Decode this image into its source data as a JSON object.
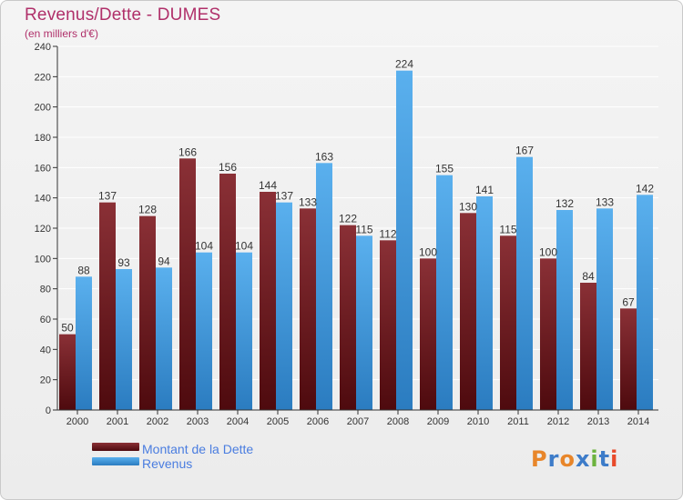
{
  "title": "Revenus/Dette - DUMES",
  "subtitle": "(en milliers d'€)",
  "logo_text": "Proxiti",
  "colors": {
    "title": "#b0306a",
    "dette": "#7a1f26",
    "revenus": "#3d9be3",
    "legend_text": "#4a7de0"
  },
  "chart_data": {
    "type": "bar",
    "categories": [
      "2000",
      "2001",
      "2002",
      "2003",
      "2004",
      "2005",
      "2006",
      "2007",
      "2008",
      "2009",
      "2010",
      "2011",
      "2012",
      "2013",
      "2014"
    ],
    "series": [
      {
        "name": "Montant de la Dette",
        "values": [
          50,
          137,
          128,
          166,
          156,
          144,
          133,
          122,
          112,
          100,
          130,
          115,
          100,
          84,
          67
        ]
      },
      {
        "name": "Revenus",
        "values": [
          88,
          93,
          94,
          104,
          104,
          137,
          163,
          115,
          224,
          155,
          141,
          167,
          132,
          133,
          142
        ]
      }
    ],
    "ylim": [
      0,
      240
    ],
    "yticks": [
      0,
      20,
      40,
      60,
      80,
      100,
      120,
      140,
      160,
      180,
      200,
      220,
      240
    ],
    "grid": true,
    "legend_position": "bottom-left"
  }
}
